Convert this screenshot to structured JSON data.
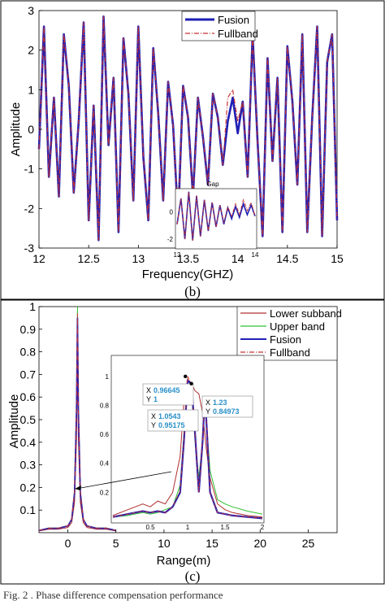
{
  "caption": "Fig. 2 . Phase difference compensation performance",
  "chart_data": [
    {
      "id": "b",
      "type": "line",
      "panel_label": "(b)",
      "xlabel": "Frequency(GHZ)",
      "ylabel": "Amplitude",
      "xlim": [
        12,
        15
      ],
      "ylim": [
        -3,
        3
      ],
      "xticks": [
        "12",
        "12.5",
        "13",
        "13.5",
        "14",
        "14.5",
        "15"
      ],
      "yticks": [
        "-3",
        "-2",
        "-1",
        "0",
        "1",
        "2",
        "3"
      ],
      "grid": false,
      "legend": "top-center",
      "x": [
        12.0,
        12.05,
        12.1,
        12.15,
        12.2,
        12.25,
        12.3,
        12.35,
        12.4,
        12.45,
        12.5,
        12.55,
        12.6,
        12.65,
        12.7,
        12.75,
        12.8,
        12.85,
        12.9,
        12.95,
        13.0,
        13.05,
        13.1,
        13.15,
        13.2,
        13.25,
        13.3,
        13.35,
        13.4,
        13.45,
        13.5,
        13.55,
        13.6,
        13.65,
        13.7,
        13.75,
        13.8,
        13.85,
        13.9,
        13.95,
        14.0,
        14.05,
        14.1,
        14.15,
        14.2,
        14.25,
        14.3,
        14.35,
        14.4,
        14.45,
        14.5,
        14.55,
        14.6,
        14.65,
        14.7,
        14.75,
        14.8,
        14.85,
        14.9,
        14.95,
        15.0
      ],
      "series": [
        {
          "name": "Fusion",
          "color": "#1f1fb4",
          "style": "solid",
          "values": [
            -0.5,
            2.6,
            -1.2,
            0.8,
            -1.7,
            2.4,
            1.1,
            -1.6,
            0.2,
            2.7,
            -2.3,
            0.6,
            -2.8,
            2.85,
            -0.4,
            1.3,
            -2.6,
            2.3,
            0.9,
            -1.8,
            2.6,
            -0.7,
            -2.3,
            2.05,
            0.4,
            -1.8,
            1.2,
            0.1,
            -2.3,
            1.1,
            0.3,
            -1.7,
            0.8,
            -0.2,
            -1.4,
            0.9,
            0.3,
            -0.9,
            0.2,
            0.8,
            -0.1,
            0.7,
            -1.2,
            2.4,
            -0.3,
            -2.7,
            1.8,
            -0.8,
            1.3,
            -2.6,
            2.1,
            0.7,
            -1.4,
            2.4,
            -2.6,
            0.3,
            2.6,
            -2.7,
            1.7,
            2.4,
            -2.3
          ]
        },
        {
          "name": "Fullband",
          "color": "#c83232",
          "style": "dashdot",
          "values": [
            -0.5,
            2.6,
            -1.2,
            0.8,
            -1.7,
            2.4,
            1.1,
            -1.6,
            0.2,
            2.7,
            -2.3,
            0.6,
            -2.8,
            2.85,
            -0.4,
            1.3,
            -2.6,
            2.3,
            0.9,
            -1.8,
            2.6,
            -0.7,
            -2.3,
            2.05,
            0.4,
            -1.8,
            1.2,
            0.1,
            -2.3,
            1.1,
            0.3,
            -1.7,
            0.8,
            -0.2,
            -1.4,
            0.9,
            0.3,
            -0.9,
            0.8,
            1.0,
            0.2,
            0.7,
            -1.2,
            2.4,
            -0.3,
            -2.7,
            1.8,
            -0.8,
            1.3,
            -2.6,
            2.1,
            0.7,
            -1.4,
            2.4,
            -2.6,
            0.3,
            2.6,
            -2.7,
            1.7,
            2.4,
            -2.3
          ]
        }
      ],
      "inset": {
        "title": "Gap",
        "xticks": [
          "13",
          "14"
        ],
        "yticks": [
          "0",
          "-2"
        ],
        "xlim": [
          13,
          14
        ],
        "ylim": [
          -2.6,
          1.6
        ],
        "x": [
          13.0,
          13.05,
          13.1,
          13.15,
          13.2,
          13.25,
          13.3,
          13.35,
          13.4,
          13.45,
          13.5,
          13.55,
          13.6,
          13.65,
          13.7,
          13.75,
          13.8,
          13.85,
          13.9,
          13.95,
          14.0
        ],
        "series": [
          {
            "name": "Fusion",
            "values": [
              -0.9,
              1.0,
              -2.0,
              1.5,
              -2.1,
              1.2,
              -1.8,
              0.9,
              -1.4,
              0.7,
              -1.1,
              0.5,
              -0.9,
              0.3,
              -0.5,
              0.4,
              -0.4,
              0.6,
              -0.2,
              0.5,
              -0.3
            ]
          },
          {
            "name": "Fullband",
            "values": [
              -0.9,
              1.0,
              -2.0,
              1.5,
              -2.1,
              1.2,
              -1.8,
              0.9,
              -1.4,
              0.7,
              -1.1,
              0.5,
              -0.8,
              0.4,
              -0.3,
              0.6,
              -0.2,
              0.9,
              0.1,
              0.7,
              -0.3
            ]
          }
        ]
      }
    },
    {
      "id": "c",
      "type": "line",
      "panel_label": "(c)",
      "xlabel": "Range(m)",
      "ylabel": "Amplitude",
      "xlim": [
        -3,
        28
      ],
      "ylim": [
        0,
        1
      ],
      "xticks": [
        "0",
        "5",
        "10",
        "15",
        "20",
        "25"
      ],
      "yticks": [
        "0.1",
        "0.2",
        "0.3",
        "0.4",
        "0.5",
        "0.6",
        "0.7",
        "0.8",
        "0.9",
        "1"
      ],
      "grid": false,
      "legend": "top-right",
      "series": [
        {
          "name": "Lower subband",
          "color": "#b03030",
          "style": "solid"
        },
        {
          "name": "Upper band",
          "color": "#30c030",
          "style": "solid"
        },
        {
          "name": "Fusion",
          "color": "#2020b8",
          "style": "solid"
        },
        {
          "name": "Fullband",
          "color": "#c83232",
          "style": "dashdot"
        }
      ],
      "main_peak": {
        "x": [
          -3.0,
          -2.0,
          -1.0,
          0.0,
          0.4,
          0.7,
          0.9,
          1.0,
          1.1,
          1.3,
          1.6,
          2.0,
          3.0,
          4.0,
          5.0
        ],
        "values": [
          0.01,
          0.02,
          0.02,
          0.03,
          0.06,
          0.18,
          0.55,
          0.97,
          0.55,
          0.18,
          0.06,
          0.03,
          0.02,
          0.02,
          0.01
        ]
      },
      "inset": {
        "xlim": [
          0,
          2
        ],
        "ylim": [
          0,
          1.1
        ],
        "xticks": [
          "0.5",
          "1",
          "1.5",
          "2"
        ],
        "yticks": [
          "0.2",
          "0.4",
          "0.6",
          "0.8",
          "1"
        ],
        "x": [
          0.0,
          0.2,
          0.4,
          0.5,
          0.6,
          0.7,
          0.8,
          0.9,
          0.95,
          1.0,
          1.05,
          1.1,
          1.15,
          1.2,
          1.23,
          1.25,
          1.3,
          1.4,
          1.5,
          1.6,
          1.8,
          2.0
        ],
        "series": [
          {
            "name": "Lower subband",
            "values": [
              0.04,
              0.08,
              0.12,
              0.1,
              0.14,
              0.12,
              0.2,
              0.45,
              0.82,
              0.98,
              0.95,
              0.9,
              0.88,
              0.75,
              0.6,
              0.5,
              0.3,
              0.12,
              0.08,
              0.06,
              0.04,
              0.03
            ]
          },
          {
            "name": "Upper band",
            "values": [
              0.03,
              0.04,
              0.06,
              0.05,
              0.06,
              0.08,
              0.1,
              0.25,
              0.6,
              0.95,
              0.9,
              0.55,
              0.3,
              0.55,
              0.8,
              0.7,
              0.35,
              0.15,
              0.12,
              0.1,
              0.07,
              0.05
            ]
          },
          {
            "name": "Fusion",
            "values": [
              0.03,
              0.05,
              0.07,
              0.06,
              0.07,
              0.06,
              0.1,
              0.2,
              0.55,
              0.97,
              0.95,
              0.6,
              0.2,
              0.55,
              0.85,
              0.7,
              0.2,
              0.06,
              0.05,
              0.04,
              0.03,
              0.02
            ]
          },
          {
            "name": "Fullband",
            "values": [
              0.03,
              0.05,
              0.07,
              0.06,
              0.07,
              0.06,
              0.1,
              0.21,
              0.56,
              1.0,
              0.95,
              0.6,
              0.2,
              0.56,
              0.85,
              0.7,
              0.2,
              0.06,
              0.05,
              0.04,
              0.03,
              0.02
            ]
          }
        ],
        "datatips": [
          {
            "x": "0.96645",
            "y": "1",
            "px": 0.97,
            "py": 1.0
          },
          {
            "x": "1.0543",
            "y": "0.95175",
            "px": 1.05,
            "py": 0.95
          },
          {
            "x": "1.23",
            "y": "0.84973",
            "px": 1.23,
            "py": 0.85
          }
        ]
      }
    }
  ]
}
